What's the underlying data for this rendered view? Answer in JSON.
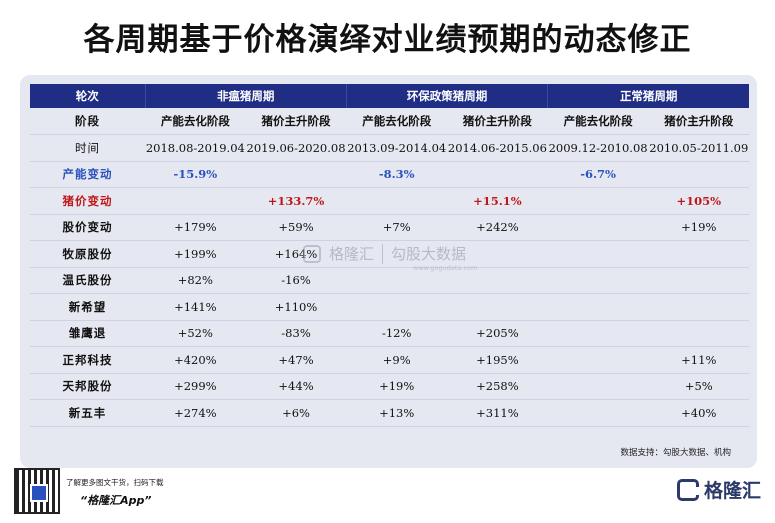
{
  "title": "各周期基于价格演绎对业绩预期的动态修正",
  "header": {
    "corner": "轮次",
    "cycles": [
      "非瘟猪周期",
      "环保政策猪周期",
      "正常猪周期"
    ]
  },
  "stage_row": {
    "label": "阶段",
    "stages": [
      "产能去化阶段",
      "猪价主升阶段",
      "产能去化阶段",
      "猪价主升阶段",
      "产能去化阶段",
      "猪价主升阶段"
    ]
  },
  "time_row": {
    "label": "时间",
    "periods": [
      "2018.08-2019.04",
      "2019.06-2020.08",
      "2013.09-2014.04",
      "2014.06-2015.06",
      "2009.12-2010.08",
      "2010.05-2011.09"
    ]
  },
  "capacity_row": {
    "label": "产能变动",
    "values": [
      "-15.9%",
      "",
      "-8.3%",
      "",
      "-6.7%",
      ""
    ]
  },
  "price_row": {
    "label": "猪价变动",
    "values": [
      "",
      "+133.7%",
      "",
      "+15.1%",
      "",
      "+105%"
    ]
  },
  "stock_rows": [
    {
      "label": "股价变动",
      "values": [
        "+179%",
        "+59%",
        "+7%",
        "+242%",
        "",
        "+19%"
      ]
    },
    {
      "label": "牧原股份",
      "values": [
        "+199%",
        "+164%",
        "",
        "",
        "",
        ""
      ]
    },
    {
      "label": "温氏股份",
      "values": [
        "+82%",
        "-16%",
        "",
        "",
        "",
        ""
      ]
    },
    {
      "label": "新希望",
      "values": [
        "+141%",
        "+110%",
        "",
        "",
        "",
        ""
      ]
    },
    {
      "label": "雏鹰退",
      "values": [
        "+52%",
        "-83%",
        "-12%",
        "+205%",
        "",
        ""
      ]
    },
    {
      "label": "正邦科技",
      "values": [
        "+420%",
        "+47%",
        "+9%",
        "+195%",
        "",
        "+11%"
      ]
    },
    {
      "label": "天邦股份",
      "values": [
        "+299%",
        "+44%",
        "+19%",
        "+258%",
        "",
        "+5%"
      ]
    },
    {
      "label": "新五丰",
      "values": [
        "+274%",
        "+6%",
        "+13%",
        "+311%",
        "",
        "+40%"
      ]
    }
  ],
  "watermark": {
    "brand": "格隆汇",
    "partner": "勾股大数据",
    "url": "www.gogudata.com"
  },
  "source": "数据支持：勾股大数据、机构",
  "footer": {
    "promo_line": "了解更多图文干货，扫码下载",
    "app_name": "“格隆汇App”",
    "brand": "格隆汇"
  },
  "colors": {
    "header_bg": "#1f2e84",
    "capacity_text": "#2a52be",
    "price_text": "#c0181a",
    "card_bg": "#e6e8f1"
  }
}
